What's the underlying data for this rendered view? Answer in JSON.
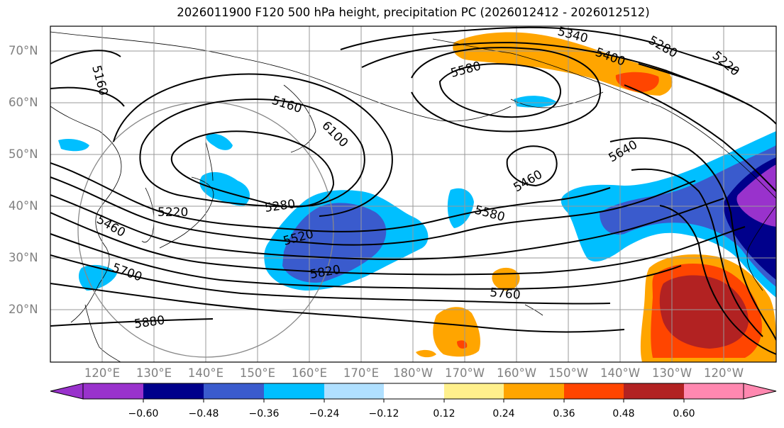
{
  "title": "2026011900 F120 500 hPa height, precipitation PC (2026012412 - 2026012512)",
  "lat_labels": [
    "70°N",
    "60°N",
    "50°N",
    "40°N",
    "30°N",
    "20°N"
  ],
  "lon_labels": [
    "120°E",
    "130°E",
    "140°E",
    "150°E",
    "160°E",
    "170°E",
    "180°W",
    "170°W",
    "160°W",
    "150°W",
    "140°W",
    "130°W",
    "120°W"
  ],
  "colorbar": {
    "ticks": [
      "−0.60",
      "−0.48",
      "−0.36",
      "−0.24",
      "−0.12",
      "0.12",
      "0.24",
      "0.36",
      "0.48",
      "0.60"
    ],
    "colors": [
      "#9932CC",
      "#00008B",
      "#3A5BCD",
      "#00BFFF",
      "#B0E0FF",
      "#FFFFFF",
      "#FFF08C",
      "#FFA500",
      "#FF4500",
      "#B22222",
      "#FF88B0"
    ]
  },
  "contour_labels": [
    "5160",
    "5340",
    "5400",
    "5280",
    "5220",
    "5580",
    "5160",
    "6100",
    "5640",
    "5460",
    "5220",
    "5280",
    "5580",
    "5520",
    "5460",
    "5820",
    "5700",
    "5760",
    "5880"
  ]
}
